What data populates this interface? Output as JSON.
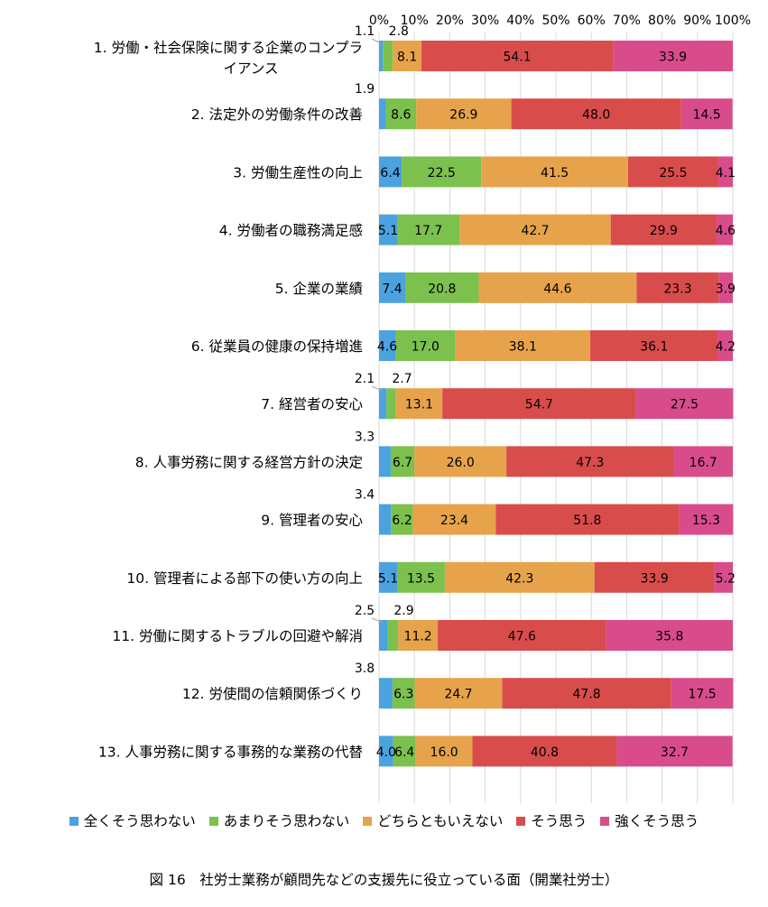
{
  "chart_data": {
    "type": "bar",
    "orientation": "horizontal",
    "stacked": true,
    "percent_stacked": true,
    "categories": [
      "1. 労働・社会保険に関する企業のコンプライアンス",
      "2. 法定外の労働条件の改善",
      "3. 労働生産性の向上",
      "4. 労働者の職務満足感",
      "5. 企業の業績",
      "6. 従業員の健康の保持増進",
      "7. 経営者の安心",
      "8. 人事労務に関する経営方針の決定",
      "9. 管理者の安心",
      "10. 管理者による部下の使い方の向上",
      "11. 労働に関するトラブルの回避や解消",
      "12. 労使間の信頼関係づくり",
      "13. 人事労務に関する事務的な業務の代替"
    ],
    "category_lines": [
      [
        "1. 労働・社会保険に関する企業のコンプラ",
        "イアンス"
      ],
      [
        "2. 法定外の労働条件の改善"
      ],
      [
        "3. 労働生産性の向上"
      ],
      [
        "4. 労働者の職務満足感"
      ],
      [
        "5. 企業の業績"
      ],
      [
        "6. 従業員の健康の保持増進"
      ],
      [
        "7. 経営者の安心"
      ],
      [
        "8. 人事労務に関する経営方針の決定"
      ],
      [
        "9. 管理者の安心"
      ],
      [
        "10. 管理者による部下の使い方の向上"
      ],
      [
        "11. 労働に関するトラブルの回避や解消"
      ],
      [
        "12. 労使間の信頼関係づくり"
      ],
      [
        "13. 人事労務に関する事務的な業務の代替"
      ]
    ],
    "series": [
      {
        "name": "全くそう思わない",
        "color": "#4aa3df",
        "values": [
          1.1,
          1.9,
          6.4,
          5.1,
          7.4,
          4.6,
          2.1,
          3.3,
          3.4,
          5.1,
          2.5,
          3.8,
          4.0
        ]
      },
      {
        "name": "あまりそう思わない",
        "color": "#7cc04e",
        "values": [
          2.8,
          8.6,
          22.5,
          17.7,
          20.8,
          17.0,
          2.7,
          6.7,
          6.2,
          13.5,
          2.9,
          6.3,
          6.4
        ]
      },
      {
        "name": "どちらともいえない",
        "color": "#e7a34b",
        "values": [
          8.1,
          26.9,
          41.5,
          42.7,
          44.6,
          38.1,
          13.1,
          26.0,
          23.4,
          42.3,
          11.2,
          24.7,
          16.0
        ]
      },
      {
        "name": "そう思う",
        "color": "#d94c4c",
        "values": [
          54.1,
          48.0,
          25.5,
          29.9,
          23.3,
          36.1,
          54.7,
          47.3,
          51.8,
          33.9,
          47.6,
          47.8,
          40.8
        ]
      },
      {
        "name": "強くそう思う",
        "color": "#d94c8c",
        "values": [
          33.9,
          14.5,
          4.1,
          4.6,
          3.9,
          4.2,
          27.5,
          16.7,
          15.3,
          5.2,
          35.8,
          17.5,
          32.7
        ]
      }
    ],
    "value_labels": [
      [
        "1.1",
        "2.8",
        "8.1",
        "54.1",
        "33.9"
      ],
      [
        "1.9",
        "8.6",
        "26.9",
        "48.0",
        "14.5"
      ],
      [
        "6.4",
        "22.5",
        "41.5",
        "25.5",
        "4.1"
      ],
      [
        "5.1",
        "17.7",
        "42.7",
        "29.9",
        "4.6"
      ],
      [
        "7.4",
        "20.8",
        "44.6",
        "23.3",
        "3.9"
      ],
      [
        "4.6",
        "17.0",
        "38.1",
        "36.1",
        "4.2"
      ],
      [
        "2.1",
        "2.7",
        "13.1",
        "54.7",
        "27.5"
      ],
      [
        "3.3",
        "6.7",
        "26.0",
        "47.3",
        "16.7"
      ],
      [
        "3.4",
        "6.2",
        "23.4",
        "51.8",
        "15.3"
      ],
      [
        "5.1",
        "13.5",
        "42.3",
        "33.9",
        "5.2"
      ],
      [
        "2.5",
        "2.9",
        "11.2",
        "47.6",
        "35.8"
      ],
      [
        "3.8",
        "6.3",
        "24.7",
        "47.8",
        "17.5"
      ],
      [
        "4.0",
        "6.4",
        "16.0",
        "40.8",
        "32.7"
      ]
    ],
    "x_ticks": [
      "0%",
      "10%",
      "20%",
      "30%",
      "40%",
      "50%",
      "60%",
      "70%",
      "80%",
      "90%",
      "100%"
    ],
    "xlim": [
      0,
      100
    ],
    "grid": true,
    "legend_position": "bottom",
    "title": "図 16　社労士業務が顧問先などの支援先に役立っている面（開業社労士）"
  },
  "legend": {
    "items": [
      {
        "label": "全くそう思わない",
        "color": "#4aa3df"
      },
      {
        "label": "あまりそう思わない",
        "color": "#7cc04e"
      },
      {
        "label": "どちらともいえない",
        "color": "#e7a34b"
      },
      {
        "label": "そう思う",
        "color": "#d94c4c"
      },
      {
        "label": "強くそう思う",
        "color": "#d94c8c"
      }
    ]
  },
  "caption": "図 16　社労士業務が顧問先などの支援先に役立っている面（開業社労士）"
}
